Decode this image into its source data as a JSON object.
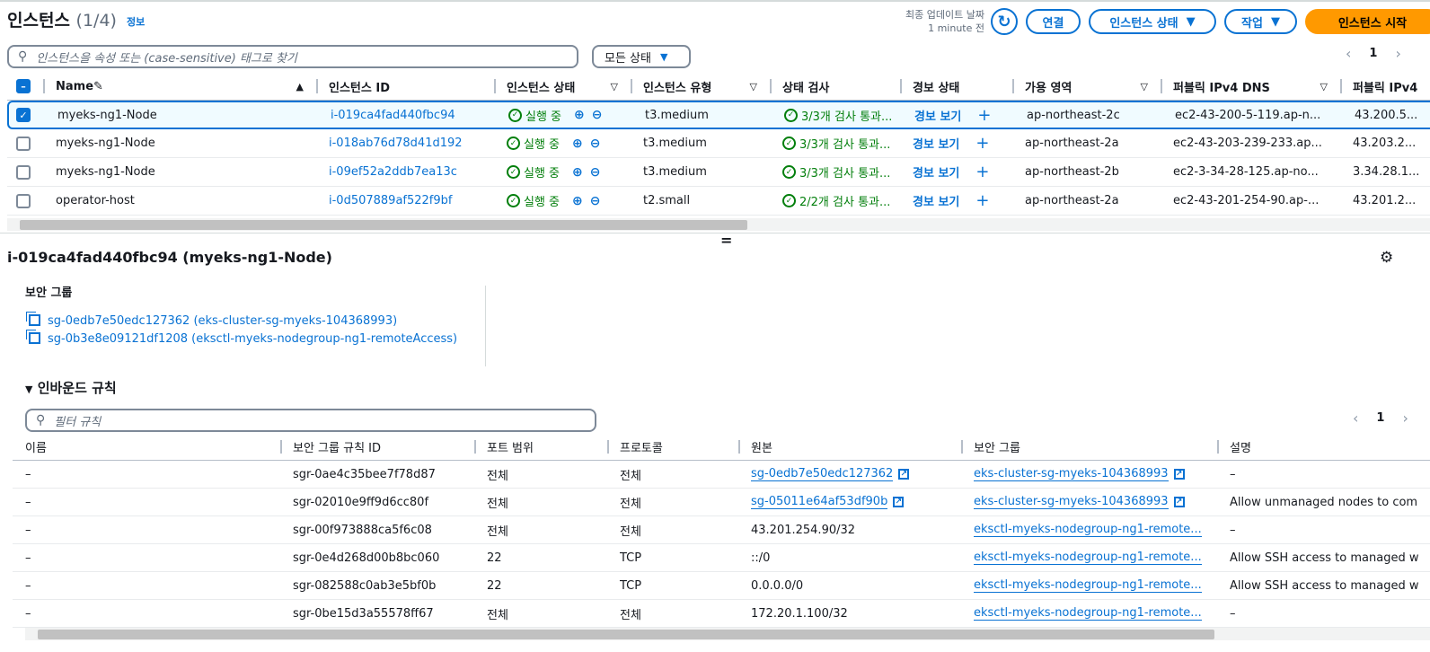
{
  "header": {
    "title": "인스턴스",
    "count": "(1/4)",
    "info": "정보",
    "last_update_label": "최종 업데이트 날짜",
    "last_update_value": "1 minute 전",
    "buttons": {
      "connect": "연결",
      "instance_state": "인스턴스 상태",
      "actions": "작업",
      "launch": "인스턴스 시작"
    }
  },
  "search": {
    "placeholder": "인스턴스을 속성 또는 (case-sensitive) 태그로 찾기",
    "state_filter": "모든 상태"
  },
  "pager": {
    "page": "1"
  },
  "instances": {
    "columns": [
      "Name",
      "인스턴스 ID",
      "인스턴스 상태",
      "인스턴스 유형",
      "상태 검사",
      "경보 상태",
      "가용 영역",
      "퍼블릭 IPv4 DNS",
      "퍼블릭 IPv4"
    ],
    "rows": [
      {
        "selected": true,
        "name": "myeks-ng1-Node",
        "id": "i-019ca4fad440fbc94",
        "state": "실행 중",
        "type": "t3.medium",
        "check": "3/3개 검사 통과...",
        "alarm": "경보 보기",
        "az": "ap-northeast-2c",
        "dns": "ec2-43-200-5-119.ap-n...",
        "ip": "43.200.5..."
      },
      {
        "selected": false,
        "name": "myeks-ng1-Node",
        "id": "i-018ab76d78d41d192",
        "state": "실행 중",
        "type": "t3.medium",
        "check": "3/3개 검사 통과...",
        "alarm": "경보 보기",
        "az": "ap-northeast-2a",
        "dns": "ec2-43-203-239-233.ap...",
        "ip": "43.203.2..."
      },
      {
        "selected": false,
        "name": "myeks-ng1-Node",
        "id": "i-09ef52a2ddb7ea13c",
        "state": "실행 중",
        "type": "t3.medium",
        "check": "3/3개 검사 통과...",
        "alarm": "경보 보기",
        "az": "ap-northeast-2b",
        "dns": "ec2-3-34-28-125.ap-no...",
        "ip": "3.34.28.1..."
      },
      {
        "selected": false,
        "name": "operator-host",
        "id": "i-0d507889af522f9bf",
        "state": "실행 중",
        "type": "t2.small",
        "check": "2/2개 검사 통과...",
        "alarm": "경보 보기",
        "az": "ap-northeast-2a",
        "dns": "ec2-43-201-254-90.ap-...",
        "ip": "43.201.2..."
      }
    ]
  },
  "detail": {
    "title": "i-019ca4fad440fbc94 (myeks-ng1-Node)",
    "sg_label": "보안 그룹",
    "security_groups": [
      "sg-0edb7e50edc127362 (eks-cluster-sg-myeks-104368993)",
      "sg-0b3e8e09121df1208 (eksctl-myeks-nodegroup-ng1-remoteAccess)"
    ],
    "inbound_title": "인바운드 규칙",
    "filter_placeholder": "필터 규칙",
    "page": "1"
  },
  "rules": {
    "columns": [
      "이름",
      "보안 그룹 규칙 ID",
      "포트 범위",
      "프로토콜",
      "원본",
      "보안 그룹",
      "설명"
    ],
    "rows": [
      {
        "name": "–",
        "id": "sgr-0ae4c35bee7f78d87",
        "port": "전체",
        "proto": "전체",
        "src": "sg-0edb7e50edc127362",
        "src_link": true,
        "sg": "eks-cluster-sg-myeks-104368993",
        "sg_ext": true,
        "desc": "–"
      },
      {
        "name": "–",
        "id": "sgr-02010e9ff9d6cc80f",
        "port": "전체",
        "proto": "전체",
        "src": "sg-05011e64af53df90b",
        "src_link": true,
        "sg": "eks-cluster-sg-myeks-104368993",
        "sg_ext": true,
        "desc": "Allow unmanaged nodes to com"
      },
      {
        "name": "–",
        "id": "sgr-00f973888ca5f6c08",
        "port": "전체",
        "proto": "전체",
        "src": "43.201.254.90/32",
        "src_link": false,
        "sg": "eksctl-myeks-nodegroup-ng1-remote...",
        "sg_ext": false,
        "desc": "–"
      },
      {
        "name": "–",
        "id": "sgr-0e4d268d00b8bc060",
        "port": "22",
        "proto": "TCP",
        "src": "::/0",
        "src_link": false,
        "sg": "eksctl-myeks-nodegroup-ng1-remote...",
        "sg_ext": false,
        "desc": "Allow SSH access to managed w"
      },
      {
        "name": "–",
        "id": "sgr-082588c0ab3e5bf0b",
        "port": "22",
        "proto": "TCP",
        "src": "0.0.0.0/0",
        "src_link": false,
        "sg": "eksctl-myeks-nodegroup-ng1-remote...",
        "sg_ext": false,
        "desc": "Allow SSH access to managed w"
      },
      {
        "name": "–",
        "id": "sgr-0be15d3a55578ff67",
        "port": "전체",
        "proto": "전체",
        "src": "172.20.1.100/32",
        "src_link": false,
        "sg": "eksctl-myeks-nodegroup-ng1-remote...",
        "sg_ext": false,
        "desc": "–"
      }
    ]
  },
  "colors": {
    "accent": "#0972d3",
    "primary": "#ff9900",
    "success": "#037f0c"
  }
}
